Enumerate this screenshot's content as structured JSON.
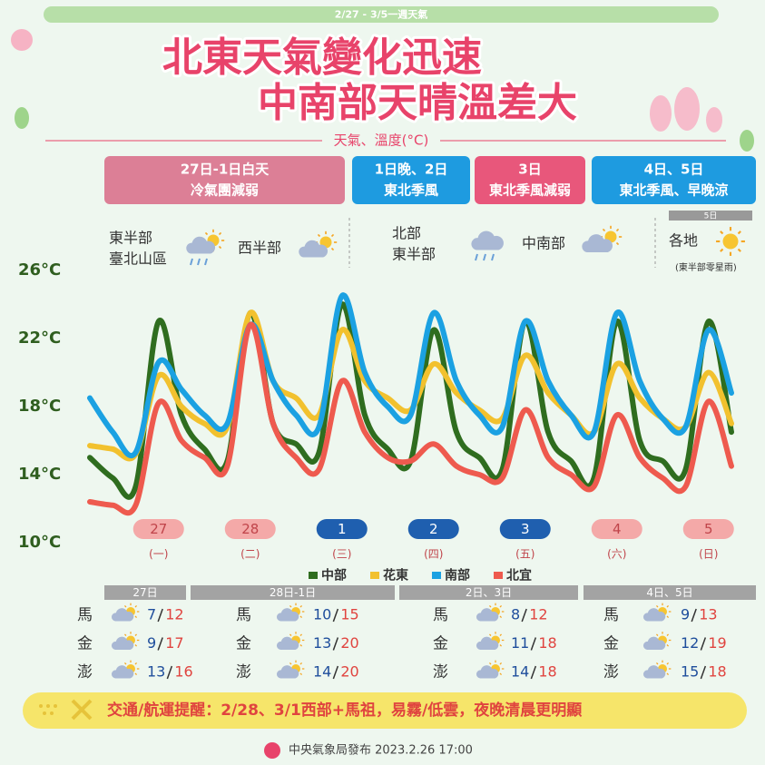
{
  "header": {
    "period": "2/27 - 3/5一週天氣",
    "title_lines": [
      "北東天氣變化迅速",
      "中南部天晴溫差大"
    ],
    "subtitle": "天氣、溫度(°C)"
  },
  "periods": [
    {
      "label": "27日-1日白天",
      "text": "冷氣團減弱",
      "color": "#dc7f96"
    },
    {
      "label": "1日晚、2日",
      "text": "東北季風",
      "color": "#1e9be0"
    },
    {
      "label": "3日",
      "text": "東北季風減弱",
      "color": "#e8577b"
    },
    {
      "label": "4日、5日",
      "text": "東北季風、早晚涼",
      "color": "#1e9be0"
    }
  ],
  "weather": [
    {
      "lines": [
        "東半部",
        "臺北山區"
      ]
    },
    {
      "lines": [
        "西半部"
      ]
    },
    {
      "lines": [
        "北部",
        "東半部"
      ]
    },
    {
      "lines": [
        "中南部"
      ]
    },
    {
      "tag": "5日",
      "lines": [
        "各地"
      ],
      "note": "(東半部零星雨)"
    }
  ],
  "chart_data": {
    "type": "line",
    "ylim": [
      10,
      26
    ],
    "yticks": [
      {
        "value": 10,
        "label": "10°C"
      },
      {
        "value": 14,
        "label": "14°C"
      },
      {
        "value": 18,
        "label": "18°C"
      },
      {
        "value": 22,
        "label": "22°C"
      },
      {
        "value": 26,
        "label": "26°C"
      }
    ],
    "days": [
      {
        "date": "27",
        "weekday": "(一)",
        "color": "#f4a9a8"
      },
      {
        "date": "28",
        "weekday": "(二)",
        "color": "#f4a9a8"
      },
      {
        "date": "1",
        "weekday": "(三)",
        "color": "#1f5faf"
      },
      {
        "date": "2",
        "weekday": "(四)",
        "color": "#1f5faf"
      },
      {
        "date": "3",
        "weekday": "(五)",
        "color": "#1f5faf"
      },
      {
        "date": "4",
        "weekday": "(六)",
        "color": "#f4a9a8"
      },
      {
        "date": "5",
        "weekday": "(日)",
        "color": "#f4a9a8"
      }
    ],
    "series": [
      {
        "name": "中部",
        "color": "#2f6d1f",
        "values": [
          15,
          13.8,
          13.3,
          23,
          17.5,
          15.5,
          14.8,
          23.5,
          17,
          15.8,
          15.3,
          24,
          17.5,
          15.5,
          14.8,
          22.5,
          16.5,
          15,
          14.3,
          23,
          16.5,
          14.8,
          13.8,
          23,
          16,
          14.8,
          14.3,
          23,
          16.5
        ]
      },
      {
        "name": "花東",
        "color": "#f2c12e",
        "values": [
          15.7,
          15.5,
          15.2,
          19.8,
          18,
          17,
          16.8,
          23.5,
          19.5,
          18.5,
          17.5,
          22.5,
          19.5,
          18.5,
          17.8,
          20.5,
          18.8,
          17.8,
          17.3,
          21,
          18.8,
          17.5,
          16.5,
          20.5,
          18.5,
          17.3,
          16.8,
          20,
          17
        ]
      },
      {
        "name": "南部",
        "color": "#1ba1e2",
        "values": [
          18.5,
          16.5,
          15.3,
          20.6,
          19,
          17.5,
          17,
          22.8,
          19.5,
          17.5,
          16.8,
          24.5,
          20,
          18,
          17.5,
          23.5,
          19.5,
          17.5,
          16.8,
          23,
          19.5,
          17.5,
          16.5,
          23.5,
          19.5,
          17.3,
          16.8,
          22.5,
          18.8
        ]
      },
      {
        "name": "北宜",
        "color": "#ee5a4e",
        "values": [
          12.4,
          12.2,
          12.2,
          18.2,
          16,
          15,
          14.5,
          22.8,
          17,
          15,
          14.3,
          19.5,
          16.5,
          15,
          14.8,
          15.8,
          14.5,
          14,
          13.8,
          17.8,
          15,
          14,
          13.3,
          17.5,
          15,
          13.8,
          13.3,
          18.3,
          14.5
        ]
      }
    ]
  },
  "islands": {
    "groups": [
      {
        "header": "27日",
        "rows": [
          {
            "name": "馬",
            "low": 7,
            "high": 12
          },
          {
            "name": "金",
            "low": 9,
            "high": 17
          },
          {
            "name": "澎",
            "low": 13,
            "high": 16
          }
        ]
      },
      {
        "header": "28日-1日",
        "rows": [
          {
            "name": "馬",
            "low": 10,
            "high": 15
          },
          {
            "name": "金",
            "low": 13,
            "high": 20
          },
          {
            "name": "澎",
            "low": 14,
            "high": 20
          }
        ]
      },
      {
        "header": "2日、3日",
        "rows": [
          {
            "name": "馬",
            "low": 8,
            "high": 12
          },
          {
            "name": "金",
            "low": 11,
            "high": 18
          },
          {
            "name": "澎",
            "low": 14,
            "high": 18
          }
        ]
      },
      {
        "header": "4日、5日",
        "rows": [
          {
            "name": "馬",
            "low": 9,
            "high": 13
          },
          {
            "name": "金",
            "low": 12,
            "high": 19
          },
          {
            "name": "澎",
            "low": 15,
            "high": 18
          }
        ]
      }
    ]
  },
  "notice": "交通/航運提醒：2/28、3/1西部+馬祖，易霧/低雲，夜晚清晨更明顯",
  "footer": "中央氣象局發布 2023.2.26 17:00"
}
